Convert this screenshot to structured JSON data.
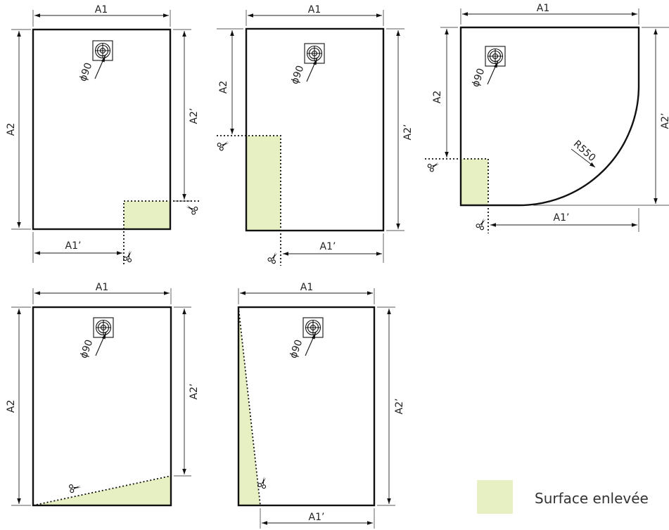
{
  "labels": {
    "a1": "A1",
    "a1p": "A1’",
    "a2": "A2",
    "a2p": "A2’",
    "phi": "ϕ90",
    "radius": "R550"
  },
  "legend": {
    "text": "Surface enlevée",
    "color": "#e7f0c3"
  },
  "icons": [
    "drain-icon",
    "scissors-icon"
  ]
}
